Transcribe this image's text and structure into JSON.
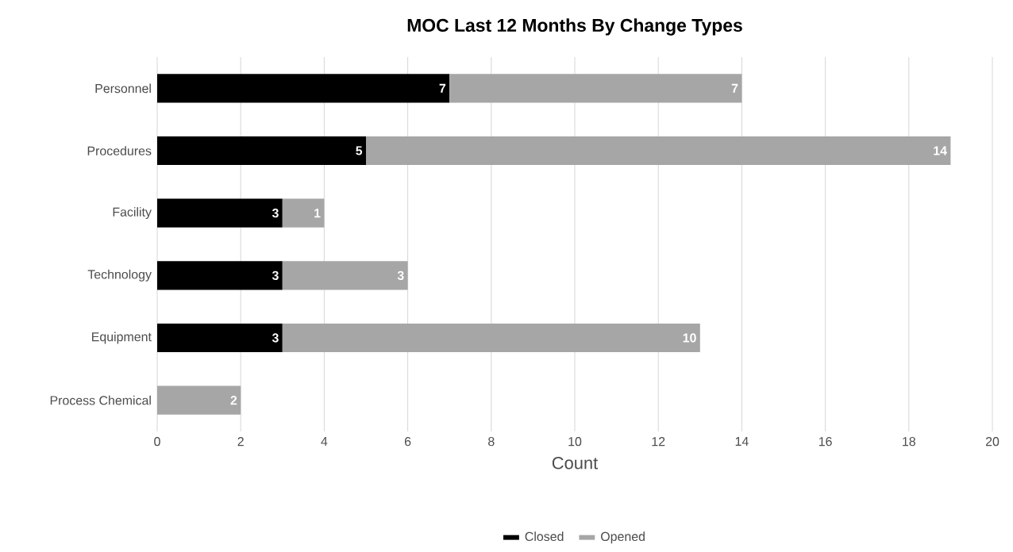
{
  "chart_data": {
    "type": "bar",
    "orientation": "horizontal",
    "stacked": true,
    "title": "MOC Last 12 Months By Change Types",
    "xlabel": "Count",
    "categories": [
      "Personnel",
      "Procedures",
      "Facility",
      "Technology",
      "Equipment",
      "Process Chemical"
    ],
    "series": [
      {
        "name": "Closed",
        "color": "#000000",
        "values": [
          7,
          5,
          3,
          3,
          3,
          null
        ]
      },
      {
        "name": "Opened",
        "color": "#a6a6a6",
        "values": [
          7,
          14,
          1,
          3,
          10,
          2
        ]
      }
    ],
    "xlim": [
      0,
      20
    ],
    "xticks": [
      0,
      2,
      4,
      6,
      8,
      10,
      12,
      14,
      16,
      18,
      20
    ],
    "grid": "x",
    "legend": "bottom",
    "data_labels": true
  }
}
